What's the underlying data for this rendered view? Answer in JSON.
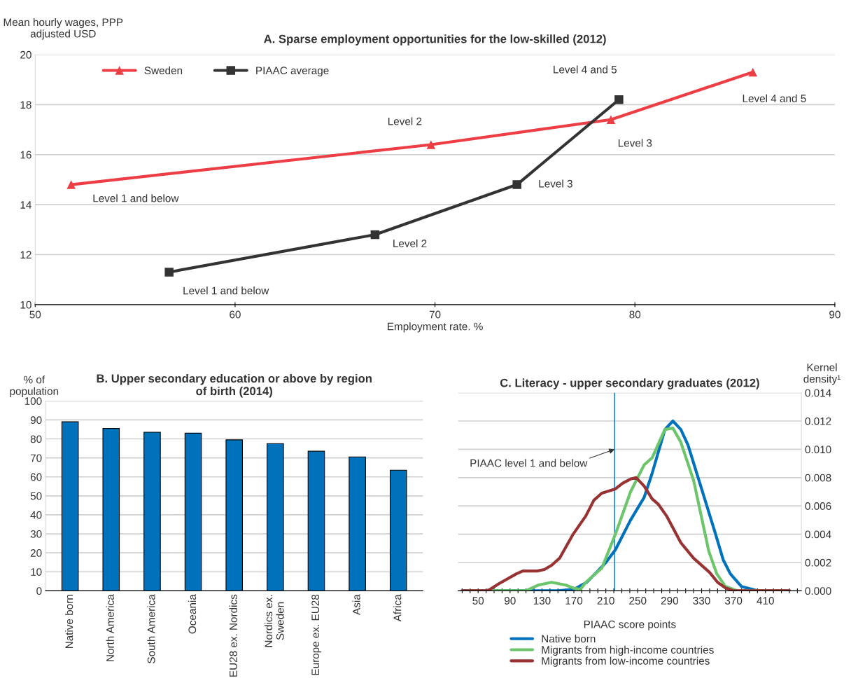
{
  "chart_data": [
    {
      "type": "line",
      "title": "A. Sparse employment opportunities for the low-skilled (2012)",
      "xlabel": "Employment rate. %",
      "ylabel": "Mean hourly wages, PPP\nadjusted USD",
      "series": [
        {
          "name": "Sweden",
          "color": "#ee3e45",
          "marker": "triangle",
          "x": [
            51.8,
            69.8,
            78.8,
            85.9
          ],
          "values": [
            14.8,
            16.4,
            17.4,
            19.3
          ]
        },
        {
          "name": "PIAAC average",
          "color": "#333333",
          "marker": "square",
          "x": [
            56.7,
            67.0,
            74.1,
            79.2
          ],
          "values": [
            11.3,
            12.8,
            14.8,
            18.2
          ]
        }
      ],
      "xlim": [
        50,
        90
      ],
      "xticks": [
        50,
        60,
        70,
        80,
        90
      ],
      "ylim": [
        10,
        20
      ],
      "yticks": [
        10,
        12,
        14,
        16,
        18,
        20
      ],
      "grid": "y",
      "legend": "top left",
      "annotations": [
        {
          "text": "Level 1 and below",
          "x": 51.8,
          "y": 14.8
        },
        {
          "text": "Level 2",
          "x": 69.8,
          "y": 16.4
        },
        {
          "text": "Level 3",
          "x": 78.8,
          "y": 17.4
        },
        {
          "text": "Level 4 and 5",
          "x": 85.9,
          "y": 19.3
        },
        {
          "text": "Level 1 and below",
          "x": 56.7,
          "y": 11.3
        },
        {
          "text": "Level 2",
          "x": 67.0,
          "y": 12.8
        },
        {
          "text": "Level 3",
          "x": 74.1,
          "y": 14.8
        },
        {
          "text": "Level 4 and 5",
          "x": 79.2,
          "y": 18.2
        }
      ]
    },
    {
      "type": "bar",
      "title": "B. Upper secondary education or above by region\nof birth (2014)",
      "ylabel": "% of\npopulation",
      "categories": [
        "Native born",
        "North America",
        "South America",
        "Oceania",
        "EU28 ex. Nordics",
        "Nordics ex.\nSweden",
        "Europe ex. EU28",
        "Asia",
        "Africa"
      ],
      "values": [
        89,
        85.5,
        83.5,
        83,
        79.5,
        77.5,
        73.5,
        70.5,
        63.5
      ],
      "color": "#0072bc",
      "ylim": [
        0,
        100
      ],
      "yticks": [
        0,
        10,
        20,
        30,
        40,
        50,
        60,
        70,
        80,
        90,
        100
      ],
      "grid": "y"
    },
    {
      "type": "line",
      "title": "C. Literacy - upper secondary graduates (2012)",
      "xlabel": "PIAAC score points",
      "ylabel": "Kernel\ndensity¹",
      "series": [
        {
          "name": "Native born",
          "color": "#0072bc",
          "x": [
            30,
            150,
            170,
            186,
            200,
            210,
            222,
            241,
            258,
            268,
            284,
            294,
            304,
            313,
            330,
            347,
            357,
            366,
            380,
            400,
            440
          ],
          "values": [
            0,
            0,
            0.0001,
            0.0006,
            0.0014,
            0.002,
            0.0029,
            0.005,
            0.0066,
            0.0083,
            0.0114,
            0.012,
            0.0114,
            0.0103,
            0.0072,
            0.0041,
            0.0022,
            0.0012,
            0.0003,
            0,
            0
          ]
        },
        {
          "name": "Migrants from high-income countries",
          "color": "#6cc56a",
          "x": [
            30,
            110,
            125,
            142,
            160,
            169,
            178,
            185,
            205,
            222,
            241,
            258,
            268,
            284,
            294,
            304,
            320,
            339,
            349,
            360,
            375,
            440
          ],
          "values": [
            0,
            0,
            0.0004,
            0.0006,
            0.0004,
            0.0002,
            0.0001,
            0.0006,
            0.0016,
            0.004,
            0.007,
            0.0089,
            0.0094,
            0.0114,
            0.0115,
            0.0105,
            0.0078,
            0.0028,
            0.0012,
            0.0003,
            0,
            0
          ]
        },
        {
          "name": "Migrants from low-income countries",
          "color": "#993333",
          "x": [
            30,
            60,
            65,
            76,
            98,
            106,
            124,
            133,
            142,
            152,
            169,
            185,
            195,
            205,
            222,
            231,
            241,
            248,
            258,
            268,
            276,
            286,
            304,
            320,
            340,
            350,
            360,
            370,
            440
          ],
          "values": [
            0,
            0,
            0.0001,
            0.0005,
            0.0012,
            0.0014,
            0.0014,
            0.0015,
            0.0018,
            0.0023,
            0.004,
            0.0053,
            0.0064,
            0.0069,
            0.0072,
            0.0076,
            0.0079,
            0.008,
            0.0074,
            0.0065,
            0.0061,
            0.0053,
            0.0034,
            0.0023,
            0.0013,
            0.0006,
            0.0002,
            0,
            0
          ]
        }
      ],
      "xlim": [
        25,
        455
      ],
      "xticks": [
        {
          "value": 30,
          "label": null
        },
        {
          "value": 40,
          "label": null
        },
        50,
        {
          "value": 60,
          "label": null
        },
        {
          "value": 70,
          "label": null
        },
        {
          "value": 80,
          "label": null
        },
        90,
        {
          "value": 100,
          "label": null
        },
        {
          "value": 110,
          "label": null
        },
        {
          "value": 120,
          "label": null
        },
        130,
        {
          "value": 140,
          "label": null
        },
        {
          "value": 150,
          "label": null
        },
        {
          "value": 160,
          "label": null
        },
        170,
        {
          "value": 180,
          "label": null
        },
        {
          "value": 190,
          "label": null
        },
        {
          "value": 200,
          "label": null
        },
        210,
        {
          "value": 220,
          "label": null
        },
        {
          "value": 230,
          "label": null
        },
        {
          "value": 240,
          "label": null
        },
        250,
        {
          "value": 260,
          "label": null
        },
        {
          "value": 270,
          "label": null
        },
        {
          "value": 280,
          "label": null
        },
        290,
        {
          "value": 300,
          "label": null
        },
        {
          "value": 310,
          "label": null
        },
        {
          "value": 320,
          "label": null
        },
        330,
        {
          "value": 340,
          "label": null
        },
        {
          "value": 350,
          "label": null
        },
        {
          "value": 360,
          "label": null
        },
        370,
        {
          "value": 380,
          "label": null
        },
        {
          "value": 390,
          "label": null
        },
        {
          "value": 400,
          "label": null
        },
        410,
        {
          "value": 420,
          "label": null
        },
        {
          "value": 430,
          "label": null
        },
        {
          "value": 440,
          "label": null
        },
        {
          "value": 450,
          "label": null
        }
      ],
      "ylim": [
        0,
        0.014
      ],
      "yticks": [
        {
          "value": 0,
          "label": "0.000"
        },
        0.002,
        0.004,
        0.006,
        0.008,
        {
          "value": 0.01,
          "label": "0.010"
        },
        0.012,
        0.014
      ],
      "grid": "y",
      "legend": "bottom",
      "ref_lines": [
        {
          "axis": "x",
          "value": 221,
          "color": "#0072bc"
        }
      ],
      "annotations": [
        {
          "text": "PIAAC level 1 and below",
          "x": 221,
          "y": 0.01
        }
      ]
    }
  ]
}
